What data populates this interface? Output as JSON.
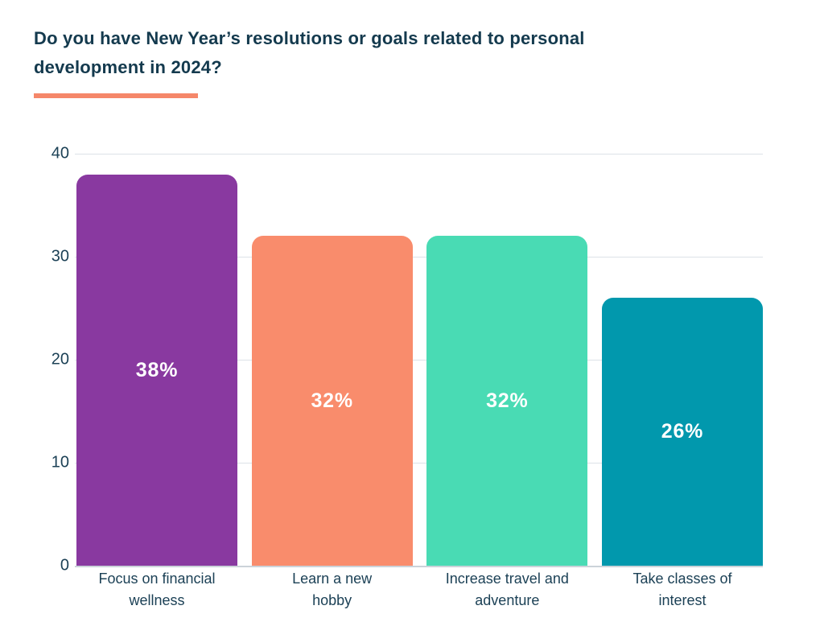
{
  "header": {
    "title": "Do you have New Year’s resolutions or goals related to personal development in 2024?"
  },
  "chart_data": {
    "type": "bar",
    "title": "Do you have New Year’s resolutions or goals related to personal development in 2024?",
    "categories": [
      "Focus on financial wellness",
      "Learn a new hobby",
      "Increase travel and adventure",
      "Take classes of interest"
    ],
    "category_lines": [
      [
        "Focus on financial",
        "wellness"
      ],
      [
        "Learn a new",
        "hobby"
      ],
      [
        "Increase travel and",
        "adventure"
      ],
      [
        "Take classes of",
        "interest"
      ]
    ],
    "values": [
      38,
      32,
      32,
      26
    ],
    "value_labels": [
      "38%",
      "32%",
      "32%",
      "26%"
    ],
    "bar_colors": [
      "#8939A0",
      "#F98C6C",
      "#49DBB4",
      "#0198AD"
    ],
    "y_ticks": [
      0,
      10,
      20,
      30,
      40
    ],
    "ylim": [
      0,
      40
    ],
    "grid": true,
    "legend": false,
    "xlabel": "",
    "ylabel": ""
  },
  "theme": {
    "background": "#FFFFFF",
    "title_color": "#143A4E",
    "accent_color": "#F5876A",
    "axis_label_color": "#1C4156",
    "gridline_color": "#DCE2E7",
    "baseline_color": "#CBD3D9",
    "value_label_color": "#FFFFFF"
  }
}
